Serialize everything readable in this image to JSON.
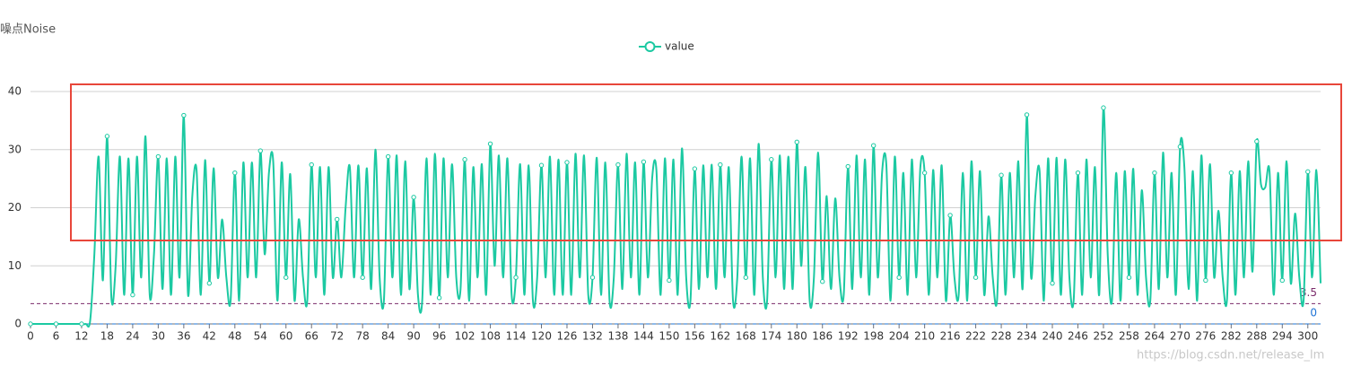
{
  "chart_data": {
    "type": "line",
    "y_axis_name": "噪点Noise",
    "watermark": "https://blog.csdn.net/release_lm",
    "categories": [
      0,
      null,
      null,
      null,
      null,
      null,
      6,
      null,
      null,
      null,
      null,
      null,
      12,
      null,
      null,
      null,
      null,
      null,
      18,
      null,
      null,
      null,
      null,
      null,
      24,
      null,
      null,
      null,
      null,
      null,
      30,
      null,
      null,
      null,
      null,
      null,
      36,
      null,
      null,
      null,
      null,
      null,
      42,
      null,
      null,
      null,
      null,
      null,
      48,
      null,
      null,
      null,
      null,
      null,
      54,
      null,
      null,
      null,
      null,
      null,
      60,
      null,
      null,
      null,
      null,
      null,
      66,
      null,
      null,
      null,
      null,
      null,
      72,
      null,
      null,
      null,
      null,
      null,
      78,
      null,
      null,
      null,
      null,
      null,
      84,
      null,
      null,
      null,
      null,
      null,
      90,
      null,
      null,
      null,
      null,
      null,
      96,
      null,
      null,
      null,
      null,
      null,
      102,
      null,
      null,
      null,
      null,
      null,
      108,
      null,
      null,
      null,
      null,
      null,
      114,
      null,
      null,
      null,
      null,
      null,
      120,
      null,
      null,
      null,
      null,
      null,
      126,
      null,
      null,
      null,
      null,
      null,
      132,
      null,
      null,
      null,
      null,
      null,
      138,
      null,
      null,
      null,
      null,
      null,
      144,
      null,
      null,
      null,
      null,
      null,
      150,
      null,
      null,
      null,
      null,
      null,
      156,
      null,
      null,
      null,
      null,
      null,
      162,
      null,
      null,
      null,
      null,
      null,
      168,
      null,
      null,
      null,
      null,
      null,
      174,
      null,
      null,
      null,
      null,
      null,
      180,
      null,
      null,
      null,
      null,
      null,
      186,
      null,
      null,
      null,
      null,
      null,
      192,
      null,
      null,
      null,
      null,
      null,
      198,
      null,
      null,
      null,
      null,
      null,
      204,
      null,
      null,
      null,
      null,
      null,
      210,
      null,
      null,
      null,
      null,
      null,
      216,
      null,
      null,
      null,
      null,
      null,
      222,
      null,
      null,
      null,
      null,
      null,
      228,
      null,
      null,
      null,
      null,
      null,
      234,
      null,
      null,
      null,
      null,
      null,
      240,
      null,
      null,
      null,
      null,
      null,
      246,
      null,
      null,
      null,
      null,
      null,
      252,
      null,
      null,
      null,
      null,
      null,
      258,
      null,
      null,
      null,
      null,
      null,
      264,
      null,
      null,
      null,
      null,
      null,
      270,
      null,
      null,
      null,
      null,
      null,
      276,
      null,
      null,
      null,
      null,
      null,
      282,
      null,
      null,
      null,
      null,
      null,
      288,
      null,
      null,
      null,
      null,
      null,
      294,
      null,
      null,
      null,
      null,
      null,
      300,
      null,
      null,
      null
    ],
    "series": [
      {
        "name": "value",
        "color": "#1cc9a2",
        "values": [
          0,
          0,
          0,
          0,
          0,
          0,
          0,
          0,
          0,
          0,
          0,
          0,
          0,
          0,
          0.5,
          12,
          28.8,
          7.5,
          32.3,
          4.5,
          10,
          28.8,
          5,
          28.5,
          5,
          28.8,
          8,
          32.3,
          5,
          12,
          28.8,
          6,
          28.5,
          5,
          28.8,
          8,
          35.9,
          5,
          22,
          26.5,
          5,
          28.2,
          7,
          26.8,
          8,
          18,
          8,
          4,
          26,
          4,
          27.8,
          8,
          27.8,
          8,
          29.8,
          12,
          26,
          28,
          4,
          27.8,
          8,
          25.8,
          4,
          18,
          8,
          4,
          27.4,
          8,
          27,
          5,
          27,
          8,
          18,
          8,
          20,
          27,
          8,
          27.3,
          8,
          26.8,
          6,
          30,
          8,
          4,
          28.8,
          8,
          29,
          5,
          28,
          6,
          21.8,
          5,
          4,
          28.5,
          5,
          29.3,
          4.5,
          28.5,
          8,
          27.5,
          8,
          6,
          28.3,
          4,
          27,
          8,
          27.5,
          5,
          31,
          10,
          29,
          8,
          28.5,
          5,
          8,
          27.5,
          5,
          27.3,
          4,
          8,
          27.3,
          8,
          28.8,
          5,
          28.3,
          5,
          27.8,
          5,
          29.3,
          8,
          29,
          5,
          8,
          28.6,
          5,
          27.8,
          4,
          8,
          27.4,
          6,
          29.3,
          8,
          27.8,
          5,
          27.9,
          8,
          25,
          26.5,
          5,
          28.5,
          7.5,
          28.3,
          5,
          30.2,
          8,
          4,
          26.7,
          6,
          27.3,
          8,
          27.4,
          6,
          27.4,
          8,
          27,
          4,
          8,
          28.8,
          8,
          28.5,
          5,
          31,
          8,
          4,
          28.3,
          8,
          29,
          6,
          28.8,
          6,
          31.3,
          10,
          27,
          4,
          8,
          29.5,
          7.3,
          22,
          6,
          21.6,
          8,
          5,
          27.1,
          6,
          29,
          8,
          28.3,
          5,
          30.7,
          8,
          26,
          27.5,
          4,
          28.8,
          8,
          26,
          5,
          28.3,
          8,
          27,
          26,
          5,
          26.5,
          8,
          27.3,
          4,
          18.7,
          8,
          5,
          26,
          4,
          28,
          8,
          26.3,
          5,
          18.5,
          8,
          4,
          25.6,
          5,
          26,
          8,
          28,
          6,
          36,
          8,
          22,
          26.3,
          4,
          28.5,
          7,
          28.6,
          5,
          28.3,
          8,
          4,
          26,
          5,
          28.3,
          8,
          27,
          5,
          37.2,
          12,
          4,
          26,
          4,
          26.3,
          8,
          26.7,
          5,
          23,
          8,
          4,
          26,
          6,
          29.5,
          8,
          26,
          5,
          30.5,
          27,
          6,
          26.3,
          4,
          29,
          7.5,
          27.5,
          8,
          19.5,
          8,
          4,
          26,
          5,
          26.3,
          8,
          28,
          9,
          31.4,
          24,
          23.5,
          26.3,
          5,
          26,
          7.5,
          28,
          7,
          19,
          8,
          4,
          26.2,
          8,
          26.5,
          7
        ]
      }
    ],
    "ylim": [
      0,
      40
    ],
    "yticks": [
      0,
      10,
      20,
      30,
      40
    ],
    "grid": true,
    "legend_position": "top",
    "mark_lines": [
      {
        "value": 3.5,
        "color": "#7a2a6a"
      },
      {
        "value": 0,
        "color": "#1f74d6"
      }
    ]
  }
}
